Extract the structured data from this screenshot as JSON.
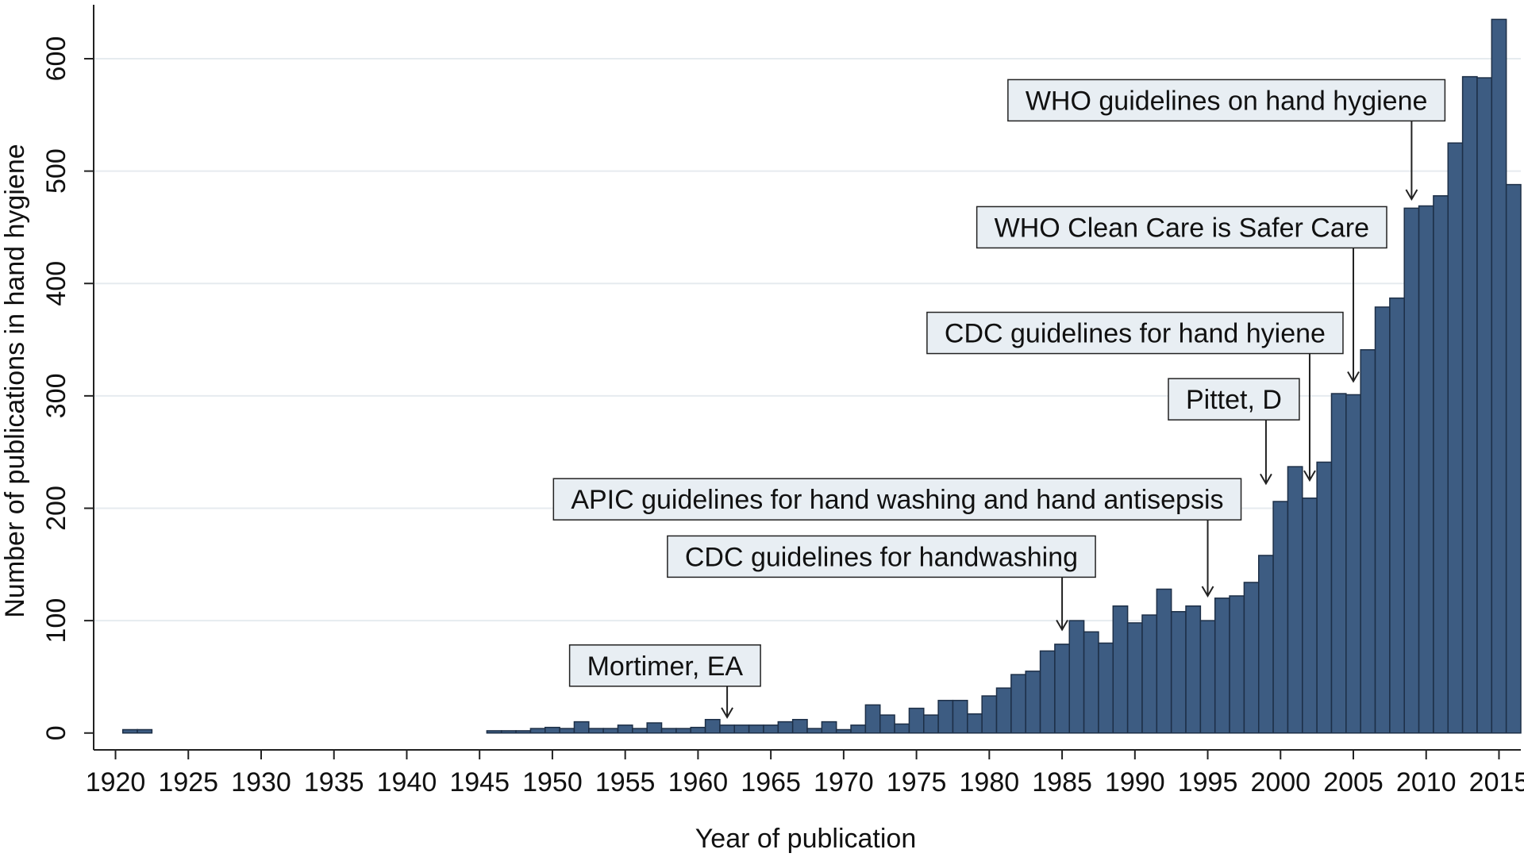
{
  "chart_data": {
    "type": "bar",
    "title": "",
    "xlabel": "Year of publication",
    "ylabel": "Number of publications in hand hygiene",
    "xlim": [
      1918.5,
      2016.5
    ],
    "ylim": [
      -15,
      648
    ],
    "xticks": [
      1920,
      1925,
      1930,
      1935,
      1940,
      1945,
      1950,
      1955,
      1960,
      1965,
      1970,
      1975,
      1980,
      1985,
      1990,
      1995,
      2000,
      2005,
      2010,
      2015
    ],
    "xtick_labels": [
      "1920",
      "1925",
      "1930",
      "1935",
      "1940",
      "1945",
      "1950",
      "1955",
      "1960",
      "1965",
      "1970",
      "1975",
      "1980",
      "1985",
      "1990",
      "1995",
      "2000",
      "2005",
      "2010",
      "2015"
    ],
    "yticks": [
      0,
      100,
      200,
      300,
      400,
      500,
      600
    ],
    "ytick_labels": [
      "0",
      "100",
      "200",
      "300",
      "400",
      "500",
      "600"
    ],
    "grid": true,
    "colors": {
      "bar": "#3d5c82",
      "bar_edge": "#1d2f47",
      "annotation_fill": "#e8eef3"
    },
    "x": [
      1921,
      1922,
      1946,
      1947,
      1948,
      1949,
      1950,
      1951,
      1952,
      1953,
      1954,
      1955,
      1956,
      1957,
      1958,
      1959,
      1960,
      1961,
      1962,
      1963,
      1964,
      1965,
      1966,
      1967,
      1968,
      1969,
      1970,
      1971,
      1972,
      1973,
      1974,
      1975,
      1976,
      1977,
      1978,
      1979,
      1980,
      1981,
      1982,
      1983,
      1984,
      1985,
      1986,
      1987,
      1988,
      1989,
      1990,
      1991,
      1992,
      1993,
      1994,
      1995,
      1996,
      1997,
      1998,
      1999,
      2000,
      2001,
      2002,
      2003,
      2004,
      2005,
      2006,
      2007,
      2008,
      2009,
      2010,
      2011,
      2012,
      2013,
      2014,
      2015,
      2016
    ],
    "values": [
      3,
      3,
      2,
      2,
      2,
      4,
      5,
      4,
      10,
      4,
      4,
      7,
      4,
      9,
      4,
      4,
      5,
      12,
      7,
      7,
      7,
      7,
      10,
      12,
      4,
      10,
      3,
      7,
      25,
      16,
      8,
      22,
      16,
      29,
      29,
      17,
      33,
      40,
      52,
      55,
      73,
      79,
      100,
      90,
      80,
      113,
      98,
      105,
      128,
      108,
      113,
      100,
      120,
      122,
      134,
      158,
      206,
      237,
      209,
      241,
      302,
      301,
      341,
      379,
      387,
      467,
      469,
      478,
      525,
      584,
      583,
      635,
      488
    ],
    "annotations": [
      {
        "text": "WHO guidelines on hand hygiene",
        "year": 2009,
        "arrow_tip_value": 475,
        "label_value": 563,
        "align": "right"
      },
      {
        "text": "WHO Clean Care is Safer Care",
        "year": 2005,
        "arrow_tip_value": 313,
        "label_value": 450,
        "align": "right"
      },
      {
        "text": "CDC guidelines for hand hyiene",
        "year": 2002,
        "arrow_tip_value": 225,
        "label_value": 356,
        "align": "right"
      },
      {
        "text": "Pittet, D",
        "year": 1999,
        "arrow_tip_value": 222,
        "label_value": 297,
        "align": "right"
      },
      {
        "text": "APIC guidelines for hand washing and hand antisepsis",
        "year": 1995,
        "arrow_tip_value": 122,
        "label_value": 208,
        "align": "right"
      },
      {
        "text": "CDC guidelines for handwashing",
        "year": 1985,
        "arrow_tip_value": 92,
        "label_value": 157,
        "align": "right"
      },
      {
        "text": "Mortimer, EA",
        "year": 1962,
        "arrow_tip_value": 14,
        "label_value": 60,
        "align": "right"
      }
    ]
  }
}
